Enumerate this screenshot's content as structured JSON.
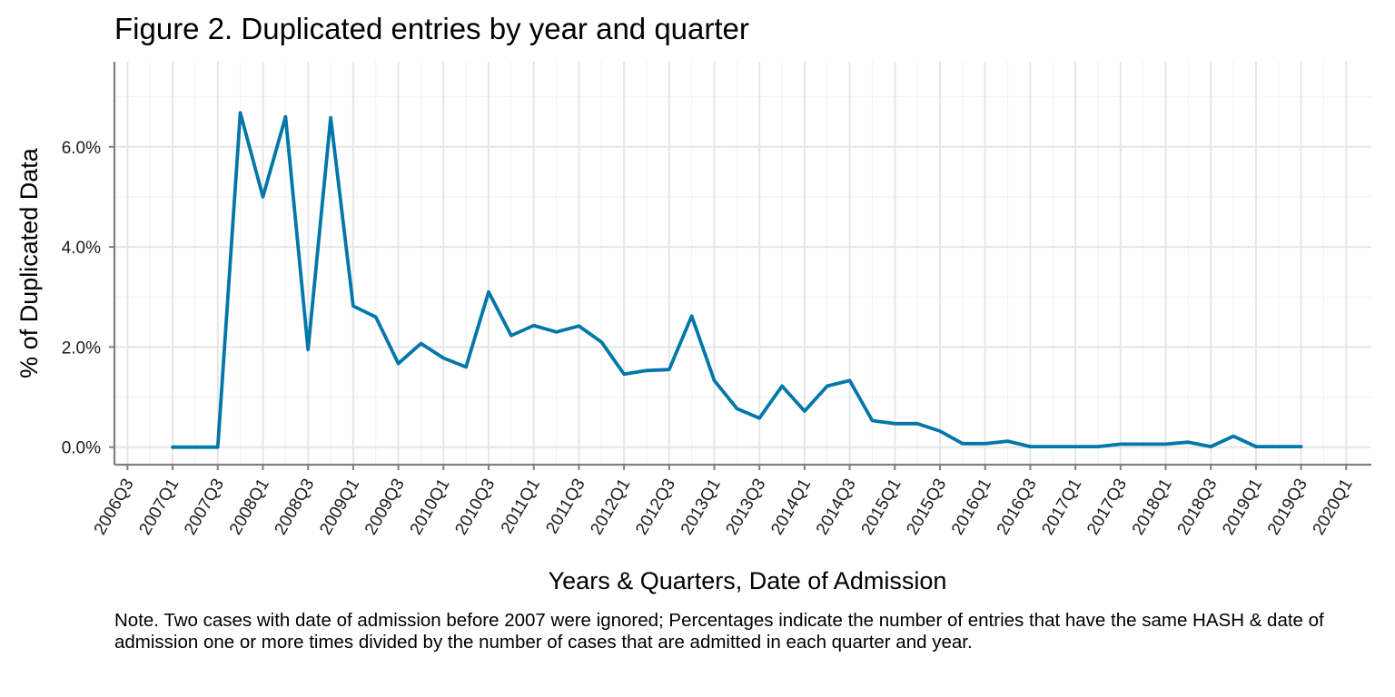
{
  "chart_data": {
    "type": "line",
    "title": "Figure 2. Duplicated entries by year and quarter",
    "xlabel": "Years & Quarters, Date of Admission",
    "ylabel": "% of Duplicated Data",
    "x_tick_labels": [
      "2006Q3",
      "2007Q1",
      "2007Q3",
      "2008Q1",
      "2008Q3",
      "2009Q1",
      "2009Q3",
      "2010Q1",
      "2010Q3",
      "2011Q1",
      "2011Q3",
      "2012Q1",
      "2012Q3",
      "2013Q1",
      "2013Q3",
      "2014Q1",
      "2014Q3",
      "2015Q1",
      "2015Q3",
      "2016Q1",
      "2016Q3",
      "2017Q1",
      "2017Q3",
      "2018Q1",
      "2018Q3",
      "2019Q1",
      "2019Q3",
      "2020Q1"
    ],
    "y_ticks": [
      0,
      2,
      4,
      6
    ],
    "y_tick_labels": [
      "0.0%",
      "2.0%",
      "4.0%",
      "6.0%"
    ],
    "ylim": [
      -0.35,
      7.7
    ],
    "grid": true,
    "series_color": "#0077a8",
    "x": [
      "2007Q1",
      "2007Q2",
      "2007Q3",
      "2007Q4",
      "2008Q1",
      "2008Q2",
      "2008Q3",
      "2008Q4",
      "2009Q1",
      "2009Q2",
      "2009Q3",
      "2009Q4",
      "2010Q1",
      "2010Q2",
      "2010Q3",
      "2010Q4",
      "2011Q1",
      "2011Q2",
      "2011Q3",
      "2011Q4",
      "2012Q1",
      "2012Q2",
      "2012Q3",
      "2012Q4",
      "2013Q1",
      "2013Q2",
      "2013Q3",
      "2013Q4",
      "2014Q1",
      "2014Q2",
      "2014Q3",
      "2014Q4",
      "2015Q1",
      "2015Q2",
      "2015Q3",
      "2015Q4",
      "2016Q1",
      "2016Q2",
      "2016Q3",
      "2016Q4",
      "2017Q1",
      "2017Q2",
      "2017Q3",
      "2017Q4",
      "2018Q1",
      "2018Q2",
      "2018Q3",
      "2018Q4",
      "2019Q1",
      "2019Q2",
      "2019Q3"
    ],
    "values": [
      0,
      0,
      0,
      6.68,
      5.0,
      6.6,
      1.95,
      6.58,
      2.82,
      2.6,
      1.67,
      2.07,
      1.78,
      1.6,
      3.1,
      2.23,
      2.43,
      2.3,
      2.42,
      2.1,
      1.46,
      1.53,
      1.55,
      2.62,
      1.33,
      0.77,
      0.58,
      1.22,
      0.72,
      1.22,
      1.33,
      0.53,
      0.47,
      0.47,
      0.32,
      0.07,
      0.07,
      0.12,
      0.01,
      0.01,
      0.01,
      0.01,
      0.06,
      0.06,
      0.06,
      0.1,
      0.01,
      0.22,
      0.01,
      0.01,
      0.01
    ]
  },
  "note": "Note. Two cases with date of admission before 2007 were ignored; Percentages indicate the number of entries that have the same HASH & date of admission one or more times divided by the number of cases that are admitted in each quarter and year."
}
